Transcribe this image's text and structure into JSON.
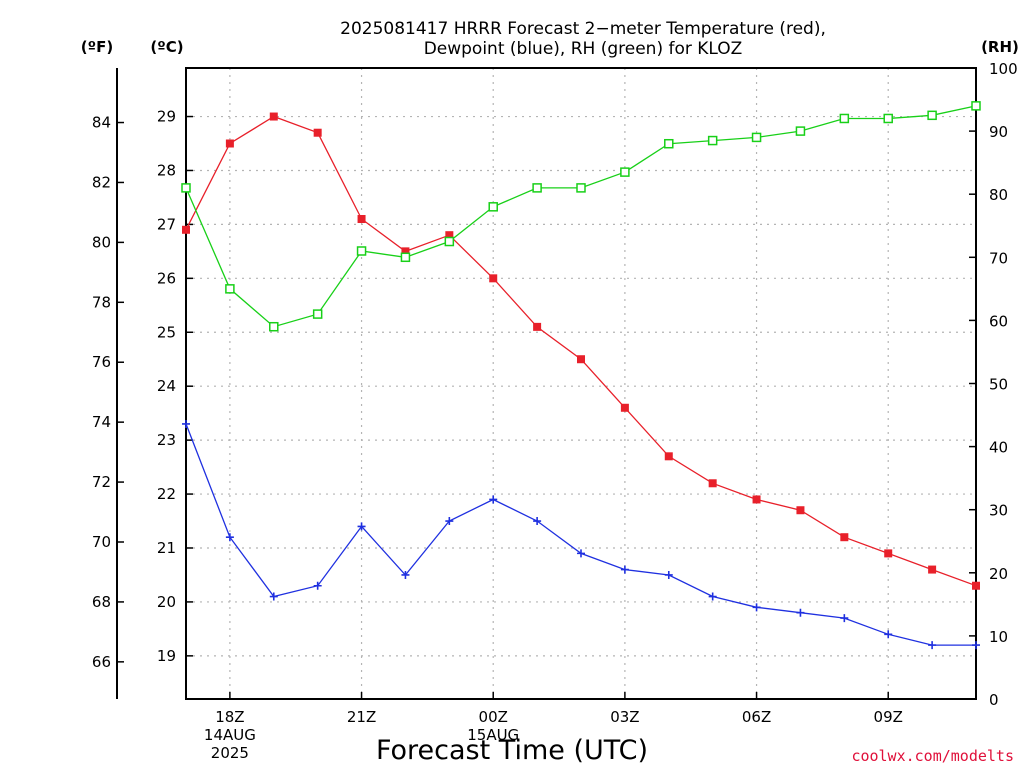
{
  "chart_data": {
    "type": "line",
    "title_line1": "2025081417 HRRR Forecast 2−meter Temperature (red),",
    "title_line2": "Dewpoint (blue), RH (green) for KLOZ",
    "xlabel": "Forecast Time (UTC)",
    "credit": "coolwx.com/modelts",
    "units": {
      "fahrenheit": "(ºF)",
      "celsius": "(ºC)",
      "rh": "(RH)"
    },
    "x_ticks": [
      {
        "hour": 1,
        "labels": [
          "18Z",
          "14AUG",
          "2025"
        ]
      },
      {
        "hour": 4,
        "labels": [
          "21Z"
        ]
      },
      {
        "hour": 7,
        "labels": [
          "00Z",
          "15AUG"
        ]
      },
      {
        "hour": 10,
        "labels": [
          "03Z"
        ]
      },
      {
        "hour": 13,
        "labels": [
          "06Z"
        ]
      },
      {
        "hour": 16,
        "labels": [
          "09Z"
        ]
      }
    ],
    "x_range": [
      0,
      18
    ],
    "celsius_axis": {
      "ylim": [
        18.2,
        29.9
      ],
      "ticks": [
        19,
        20,
        21,
        22,
        23,
        24,
        25,
        26,
        27,
        28,
        29
      ]
    },
    "fahrenheit_axis": {
      "ticks": [
        66,
        68,
        70,
        72,
        74,
        76,
        78,
        80,
        82,
        84
      ]
    },
    "rh_axis": {
      "ylim": [
        0,
        100
      ],
      "ticks": [
        0,
        10,
        20,
        30,
        40,
        50,
        60,
        70,
        80,
        90,
        100
      ]
    },
    "colors": {
      "temperature": "#e8202a",
      "dewpoint": "#1f30e0",
      "rh": "#18d018"
    },
    "series": [
      {
        "key": "temperature",
        "axis": "celsius",
        "marker": "filled-square",
        "x": [
          0,
          1,
          2,
          3,
          4,
          5,
          6,
          7,
          8,
          9,
          10,
          11,
          12,
          13,
          14,
          15,
          16,
          17,
          18
        ],
        "values": [
          26.9,
          28.5,
          29.0,
          28.7,
          27.1,
          26.5,
          26.8,
          26.0,
          25.1,
          24.5,
          23.6,
          22.7,
          22.2,
          21.9,
          21.7,
          21.2,
          20.9,
          20.6,
          20.3
        ]
      },
      {
        "key": "dewpoint",
        "axis": "celsius",
        "marker": "plus",
        "x": [
          0,
          1,
          2,
          3,
          4,
          5,
          6,
          7,
          8,
          9,
          10,
          11,
          12,
          13,
          14,
          15,
          16,
          17,
          18
        ],
        "values": [
          23.3,
          21.2,
          20.1,
          20.3,
          21.4,
          20.5,
          21.5,
          21.9,
          21.5,
          20.9,
          20.6,
          20.5,
          20.1,
          19.9,
          19.8,
          19.7,
          19.4,
          19.2,
          19.2
        ]
      },
      {
        "key": "rh",
        "axis": "rh",
        "marker": "open-square",
        "x": [
          0,
          1,
          2,
          3,
          4,
          5,
          6,
          7,
          8,
          9,
          10,
          11,
          12,
          13,
          14,
          15,
          16,
          17,
          18
        ],
        "values": [
          81,
          65,
          59,
          61,
          71,
          70,
          72.5,
          78,
          81,
          81,
          83.5,
          88,
          88.5,
          89,
          90,
          92,
          92,
          92.5,
          94
        ]
      }
    ]
  }
}
